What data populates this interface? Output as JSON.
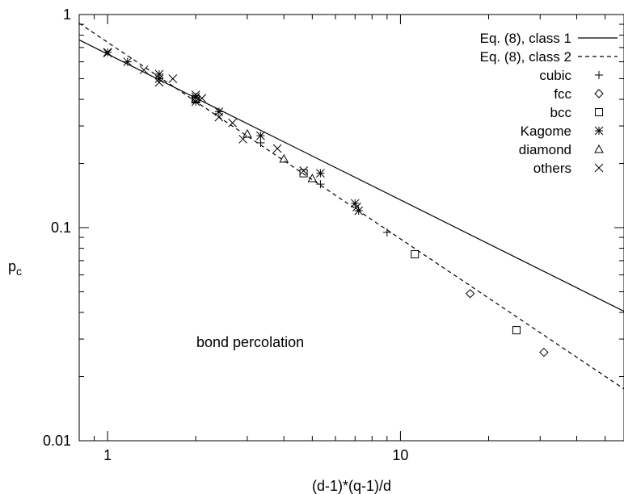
{
  "chart_data": {
    "type": "scatter",
    "title": "",
    "xlabel": "(d-1)*(q-1)/d",
    "ylabel_main": "p",
    "ylabel_sub": "c",
    "xscale": "log",
    "yscale": "log",
    "xlim": [
      0.8,
      58
    ],
    "ylim": [
      0.01,
      1
    ],
    "x_ticks": [
      {
        "value": 1,
        "label": "1"
      },
      {
        "value": 10,
        "label": "10"
      }
    ],
    "y_ticks": [
      {
        "value": 0.01,
        "label": "0.01"
      },
      {
        "value": 0.1,
        "label": "0.1"
      },
      {
        "value": 1,
        "label": "1"
      }
    ],
    "grid": false,
    "legend_position": "top-right",
    "annotation": "bond percolation",
    "lines": [
      {
        "name": "Eq. (8), class 1",
        "style": "solid",
        "points": [
          [
            0.8,
            0.76
          ],
          [
            58,
            0.0405
          ]
        ]
      },
      {
        "name": "Eq. (8), class 2",
        "style": "dashed",
        "points": [
          [
            0.8,
            0.91
          ],
          [
            58,
            0.0175
          ]
        ]
      }
    ],
    "series": [
      {
        "name": "cubic",
        "marker": "plus",
        "points": [
          [
            3.33,
            0.25
          ],
          [
            5.33,
            0.16
          ],
          [
            9.0,
            0.095
          ]
        ]
      },
      {
        "name": "fcc",
        "marker": "diamond",
        "points": [
          [
            17.3,
            0.049
          ],
          [
            30.9,
            0.026
          ]
        ]
      },
      {
        "name": "bcc",
        "marker": "square",
        "points": [
          [
            2.0,
            0.4
          ],
          [
            4.67,
            0.18
          ],
          [
            11.2,
            0.075
          ],
          [
            24.9,
            0.033
          ]
        ]
      },
      {
        "name": "Kagome",
        "marker": "star",
        "points": [
          [
            1.0,
            0.665
          ],
          [
            1.17,
            0.6
          ],
          [
            1.5,
            0.525
          ],
          [
            1.5,
            0.5
          ],
          [
            2.0,
            0.41
          ],
          [
            2.0,
            0.39
          ],
          [
            2.4,
            0.35
          ],
          [
            3.33,
            0.27
          ],
          [
            5.33,
            0.18
          ],
          [
            7.0,
            0.13
          ],
          [
            7.2,
            0.12
          ]
        ]
      },
      {
        "name": "diamond",
        "marker": "triangle",
        "points": [
          [
            2.0,
            0.4
          ],
          [
            3.0,
            0.275
          ],
          [
            4.0,
            0.21
          ],
          [
            5.0,
            0.17
          ]
        ]
      },
      {
        "name": "others",
        "marker": "cross",
        "points": [
          [
            1.0,
            0.66
          ],
          [
            1.33,
            0.55
          ],
          [
            1.5,
            0.48
          ],
          [
            1.67,
            0.5
          ],
          [
            2.0,
            0.42
          ],
          [
            2.1,
            0.405
          ],
          [
            2.4,
            0.33
          ],
          [
            2.67,
            0.31
          ],
          [
            2.9,
            0.26
          ],
          [
            3.8,
            0.235
          ],
          [
            4.67,
            0.185
          ],
          [
            7.1,
            0.125
          ]
        ]
      }
    ]
  }
}
